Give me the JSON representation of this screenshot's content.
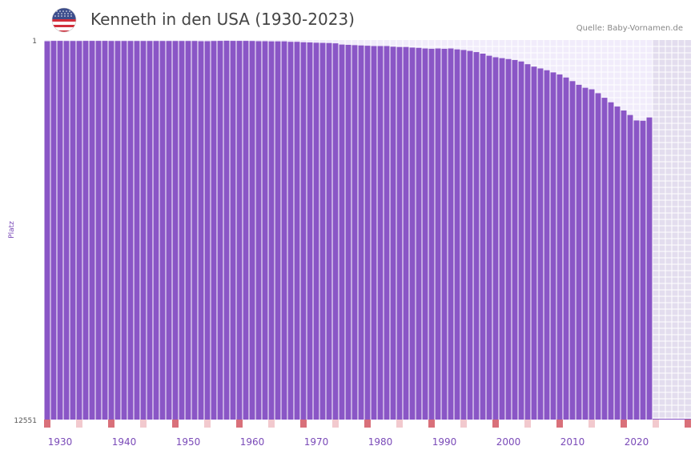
{
  "header": {
    "title": "Kenneth in den USA (1930-2023)",
    "source": "Quelle: Baby-Vornamen.de"
  },
  "icons": {
    "flag": "us-flag-icon"
  },
  "colors": {
    "bar": "#8a56c6",
    "plot_bg": "#f1ecfb",
    "grid": "#ffffff",
    "future_bg": "#e3ddee",
    "marker_strong": "#d9707a",
    "marker_light": "#f2c9ce",
    "axis_text": "#7a4ab8"
  },
  "chart_data": {
    "type": "bar",
    "title": "Kenneth in den USA (1930-2023)",
    "ylabel": "Platz",
    "xlabel": "",
    "y_axis_reversed": true,
    "ylim": [
      1,
      12551
    ],
    "y_tick_labels": [
      "1",
      "12551"
    ],
    "x_tick_labels": [
      "1930",
      "1940",
      "1950",
      "1960",
      "1970",
      "1980",
      "1990",
      "2000",
      "2010",
      "2020"
    ],
    "x_range": [
      1927.5,
      2028.5
    ],
    "future_from": 2022.5,
    "years": [
      1928,
      1929,
      1930,
      1931,
      1932,
      1933,
      1934,
      1935,
      1936,
      1937,
      1938,
      1939,
      1940,
      1941,
      1942,
      1943,
      1944,
      1945,
      1946,
      1947,
      1948,
      1949,
      1950,
      1951,
      1952,
      1953,
      1954,
      1955,
      1956,
      1957,
      1958,
      1959,
      1960,
      1961,
      1962,
      1963,
      1964,
      1965,
      1966,
      1967,
      1968,
      1969,
      1970,
      1971,
      1972,
      1973,
      1974,
      1975,
      1976,
      1977,
      1978,
      1979,
      1980,
      1981,
      1982,
      1983,
      1984,
      1985,
      1986,
      1987,
      1988,
      1989,
      1990,
      1991,
      1992,
      1993,
      1994,
      1995,
      1996,
      1997,
      1998,
      1999,
      2000,
      2001,
      2002,
      2003,
      2004,
      2005,
      2006,
      2007,
      2008,
      2009,
      2010,
      2011,
      2012,
      2013,
      2014,
      2015,
      2016,
      2017,
      2018,
      2019,
      2020,
      2021,
      2022
    ],
    "values": [
      40,
      30,
      30,
      33,
      33,
      33,
      30,
      30,
      30,
      30,
      33,
      33,
      33,
      33,
      33,
      33,
      33,
      33,
      33,
      33,
      33,
      33,
      33,
      33,
      40,
      40,
      33,
      30,
      25,
      30,
      30,
      30,
      33,
      40,
      40,
      45,
      45,
      45,
      60,
      60,
      75,
      80,
      90,
      95,
      100,
      110,
      150,
      160,
      170,
      180,
      190,
      200,
      200,
      200,
      220,
      230,
      230,
      250,
      260,
      280,
      290,
      280,
      290,
      280,
      310,
      330,
      360,
      400,
      450,
      520,
      570,
      600,
      630,
      660,
      710,
      800,
      880,
      940,
      1000,
      1070,
      1140,
      1240,
      1360,
      1480,
      1580,
      1630,
      1760,
      1910,
      2060,
      2200,
      2330,
      2480,
      2660,
      2670,
      2560
    ]
  }
}
